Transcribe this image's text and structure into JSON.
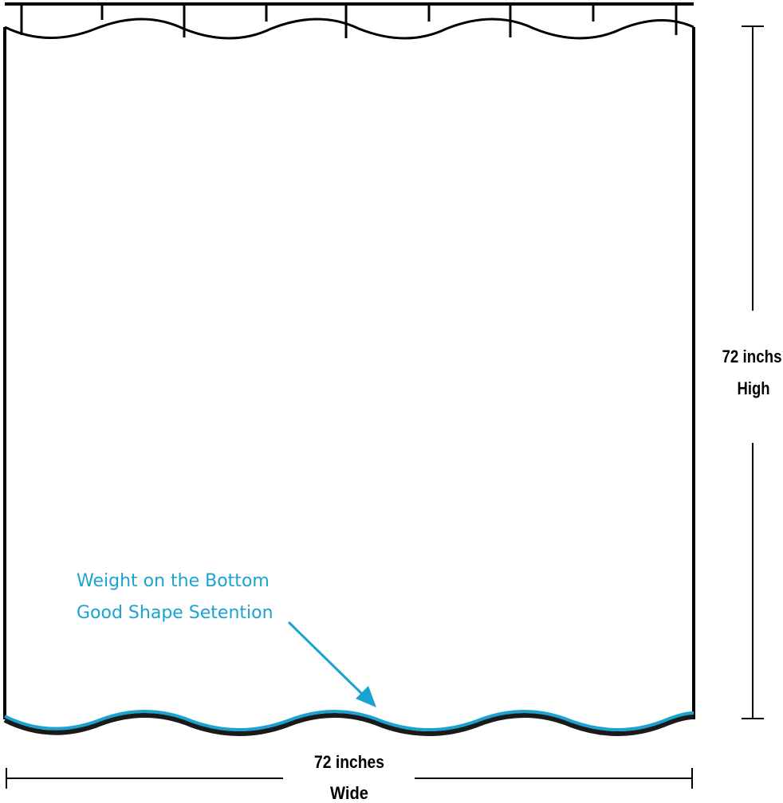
{
  "dimensions": {
    "height_value": "72 inchs",
    "height_label": "High",
    "width_value": "72 inches",
    "width_label": "Wide"
  },
  "callout": {
    "line1": "Weight on the Bottom",
    "line2": "Good Shape Setention"
  },
  "colors": {
    "outline": "#000000",
    "accent": "#1ba3d0"
  }
}
